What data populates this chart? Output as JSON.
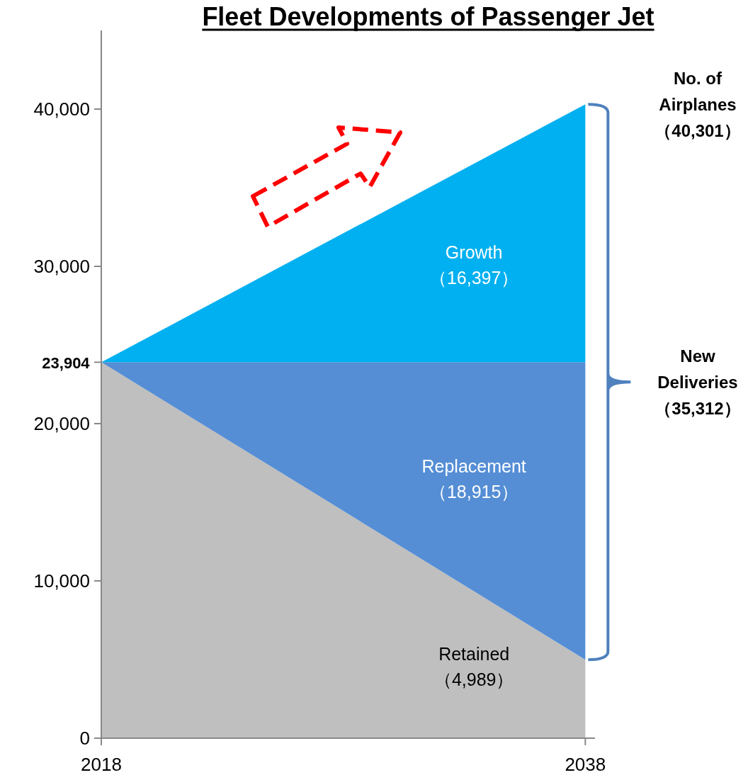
{
  "chart_data": {
    "type": "area",
    "stacked": true,
    "title": "**Fleet Developments of Passenger Jet**",
    "x": [
      2018,
      2038
    ],
    "series": [
      {
        "name": "Retained",
        "color": "#bfbfbf",
        "values": [
          23904,
          4989
        ]
      },
      {
        "name": "Replacement",
        "color": "#558ed5",
        "values": [
          0,
          18915
        ]
      },
      {
        "name": "Growth",
        "color": "#00b0f0",
        "values": [
          0,
          16397
        ]
      }
    ],
    "xlim": [
      2018,
      2038.4
    ],
    "ylim": [
      0,
      45000
    ],
    "xticks": [
      {
        "value": 2018,
        "label": "2018"
      },
      {
        "value": 2038,
        "label": "2038"
      }
    ],
    "yticks": [
      {
        "value": 0,
        "label": "0"
      },
      {
        "value": 10000,
        "label": "10,000"
      },
      {
        "value": 20000,
        "label": "20,000"
      },
      {
        "value": 23904,
        "label": "**23,904**"
      },
      {
        "value": 30000,
        "label": "30,000"
      },
      {
        "value": 40000,
        "label": "40,000"
      }
    ],
    "annotations": [
      "No. of\nAirplanes\n（40,301）",
      "New\nDeliveries\n（35,312）",
      "（4,989）",
      "（18,915）",
      "（16,397）"
    ]
  }
}
